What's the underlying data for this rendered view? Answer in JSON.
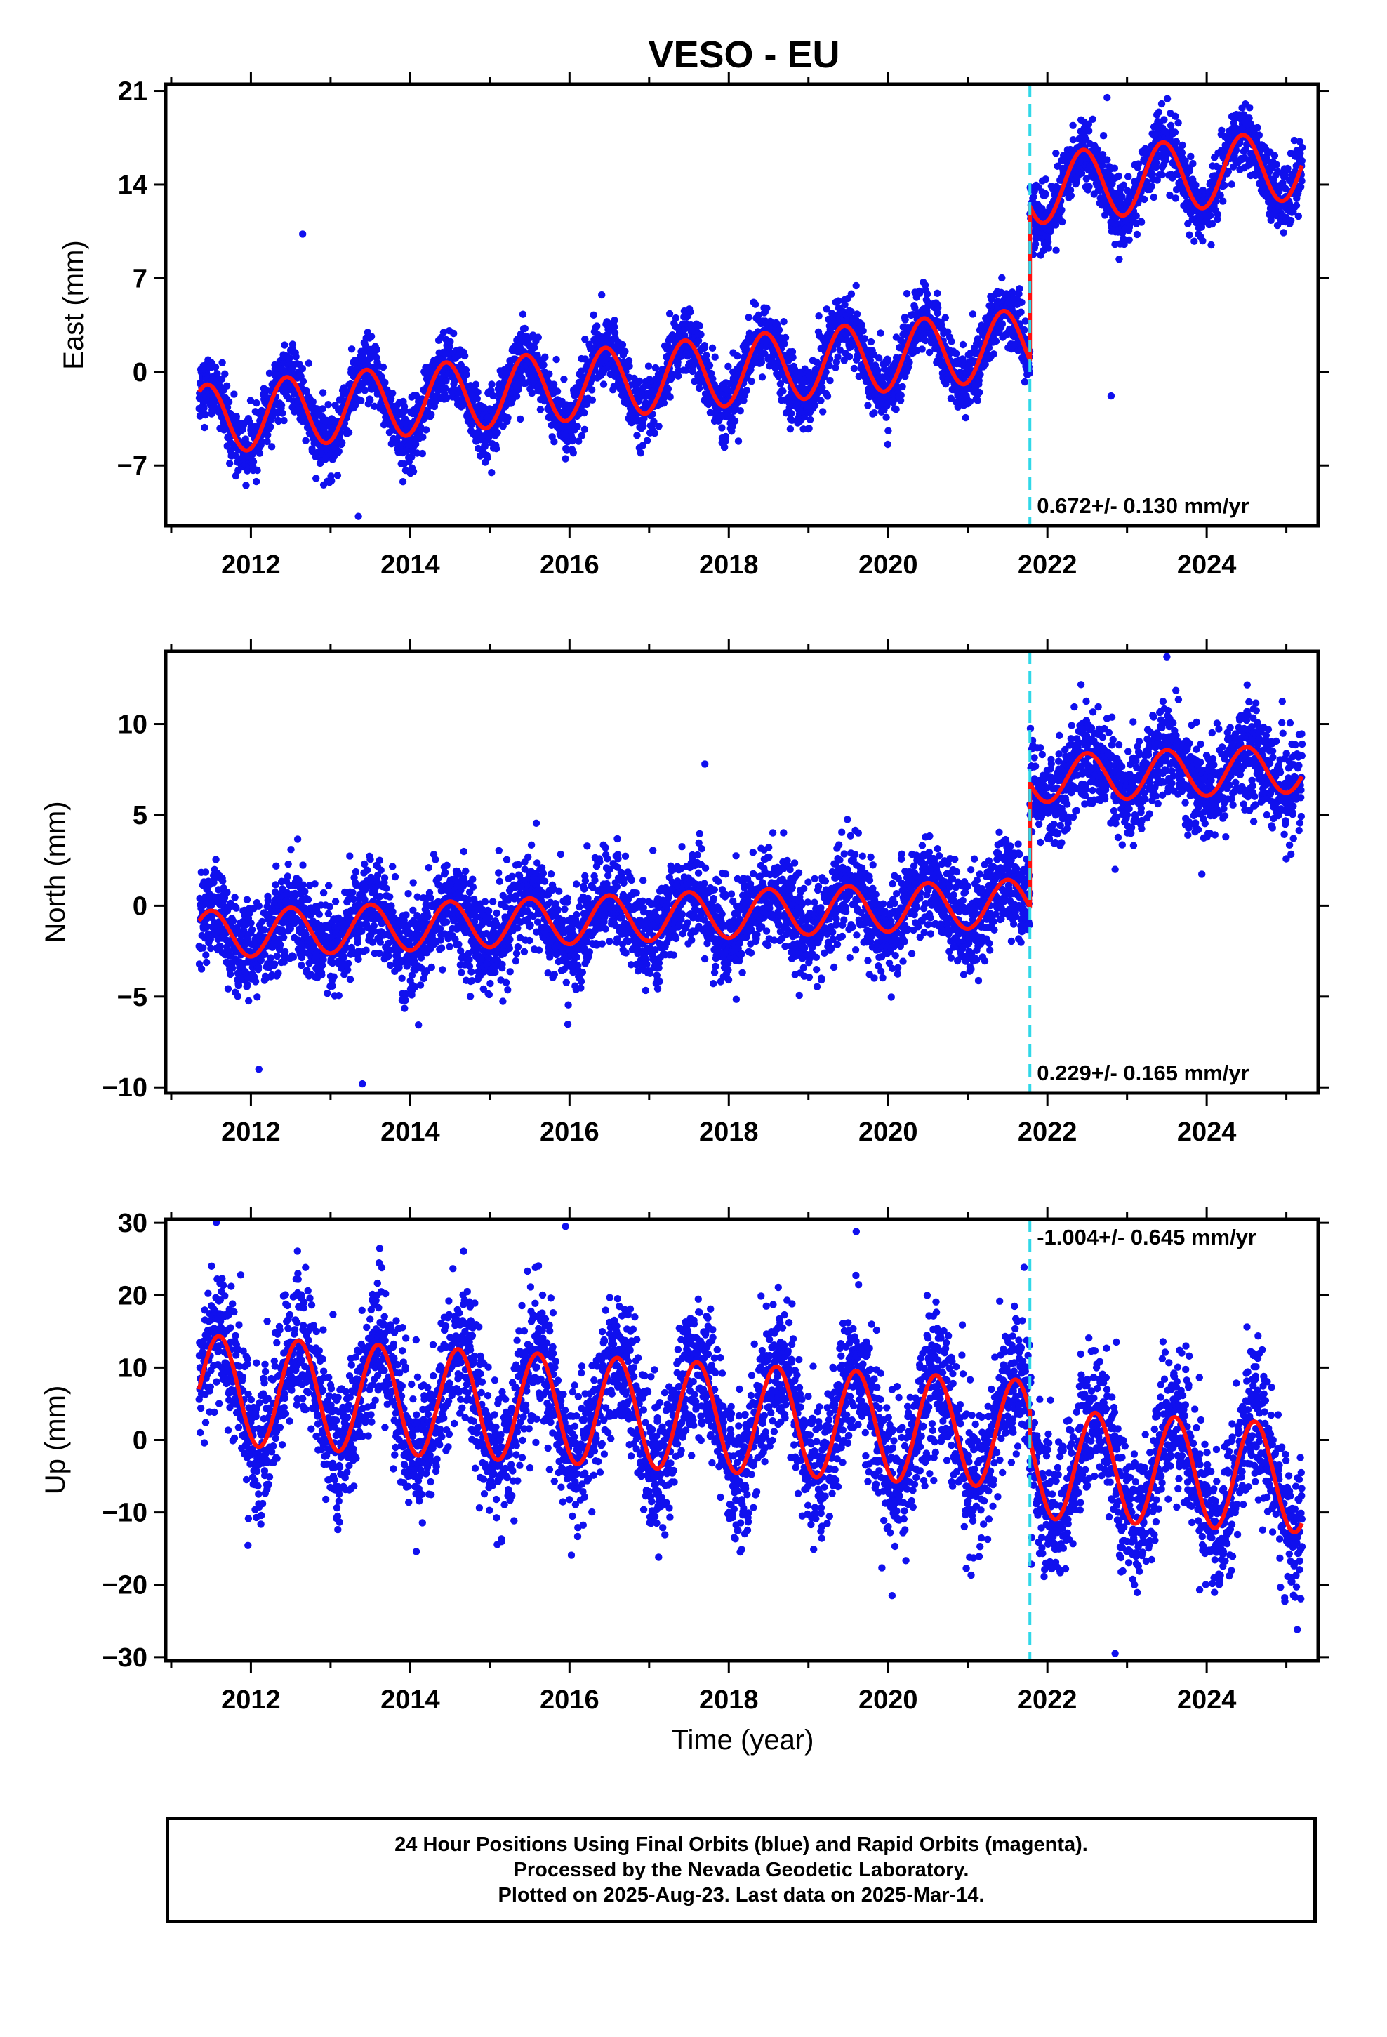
{
  "title": "VESO - EU",
  "xlabel": "Time (year)",
  "footer": {
    "line1": "24 Hour Positions Using Final Orbits (blue) and Rapid Orbits (magenta).",
    "line2": "Processed by the Nevada Geodetic Laboratory.",
    "line3": "Plotted on 2025-Aug-23. Last data on 2025-Mar-14."
  },
  "colors": {
    "points": "#1010ee",
    "fit": "#ff1010",
    "step_line": "#30d8e8",
    "frame": "#000000"
  },
  "chart_data": [
    {
      "type": "scatter",
      "component": "east",
      "ylabel": "East (mm)",
      "xlim": [
        2010.93,
        2025.4
      ],
      "ylim": [
        -11.5,
        21.5
      ],
      "xticks": [
        "2012",
        "2014",
        "2016",
        "2018",
        "2020",
        "2022",
        "2024"
      ],
      "yticks": [
        "-7",
        "0",
        "7",
        "14",
        "21"
      ],
      "grid": false,
      "step_epoch": 2021.78,
      "rate_label": "0.672+/- 0.130 mm/yr",
      "rate_position": "bottom-right",
      "model": {
        "start": 2011.35,
        "end": 2025.2,
        "offset_at_start": -3.6,
        "rate": 0.55,
        "annual_amplitude": 2.6,
        "annual_phase_peak": 0.45,
        "step": 11.5,
        "scatter_sd": 1.2
      },
      "outliers": [
        [
          2012.65,
          10.3
        ],
        [
          2013.35,
          -10.8
        ],
        [
          2022.8,
          -1.8
        ],
        [
          2022.75,
          20.5
        ]
      ],
      "series": [
        {
          "name": "Final Orbits",
          "kind": "points"
        },
        {
          "name": "Rapid Orbits",
          "kind": "points"
        },
        {
          "name": "",
          "kind": "fit"
        }
      ]
    },
    {
      "type": "scatter",
      "component": "north",
      "ylabel": "North (mm)",
      "xlim": [
        2010.93,
        2025.4
      ],
      "ylim": [
        -10.3,
        14.0
      ],
      "xticks": [
        "2012",
        "2014",
        "2016",
        "2018",
        "2020",
        "2022",
        "2024"
      ],
      "yticks": [
        "-10",
        "-5",
        "0",
        "5",
        "10"
      ],
      "grid": false,
      "step_epoch": 2021.78,
      "rate_label": "0.229+/- 0.165 mm/yr",
      "rate_position": "bottom-right",
      "model": {
        "start": 2011.35,
        "end": 2025.2,
        "offset_at_start": -1.6,
        "rate": 0.17,
        "annual_amplitude": 1.3,
        "annual_phase_peak": 0.5,
        "step": 6.8,
        "scatter_sd": 1.3
      },
      "outliers": [
        [
          2017.7,
          7.8
        ],
        [
          2013.4,
          -9.8
        ],
        [
          2012.1,
          -9.0
        ],
        [
          2023.5,
          13.7
        ],
        [
          2022.85,
          2.0
        ]
      ],
      "series": [
        {
          "name": "Final Orbits",
          "kind": "points"
        },
        {
          "name": "Rapid Orbits",
          "kind": "points"
        },
        {
          "name": "",
          "kind": "fit"
        }
      ]
    },
    {
      "type": "scatter",
      "component": "up",
      "ylabel": "Up (mm)",
      "xlim": [
        2010.93,
        2025.4
      ],
      "ylim": [
        -30.5,
        30.5
      ],
      "xticks": [
        "2012",
        "2014",
        "2016",
        "2018",
        "2020",
        "2022",
        "2024"
      ],
      "yticks": [
        "-30",
        "-20",
        "-10",
        "0",
        "10",
        "20",
        "30"
      ],
      "grid": false,
      "step_epoch": 2021.78,
      "rate_label": "-1.004+/- 0.645 mm/yr",
      "rate_position": "top-right",
      "model": {
        "start": 2011.35,
        "end": 2025.2,
        "offset_at_start": 7.0,
        "rate": -0.6,
        "annual_amplitude": 7.5,
        "annual_phase_peak": 0.6,
        "step": -4.0,
        "scatter_sd": 4.8
      },
      "outliers": [
        [
          2015.95,
          29.5
        ],
        [
          2019.6,
          28.8
        ],
        [
          2022.85,
          -29.5
        ],
        [
          2020.05,
          -21.5
        ]
      ],
      "series": [
        {
          "name": "Final Orbits",
          "kind": "points"
        },
        {
          "name": "Rapid Orbits",
          "kind": "points"
        },
        {
          "name": "",
          "kind": "fit"
        }
      ]
    }
  ]
}
